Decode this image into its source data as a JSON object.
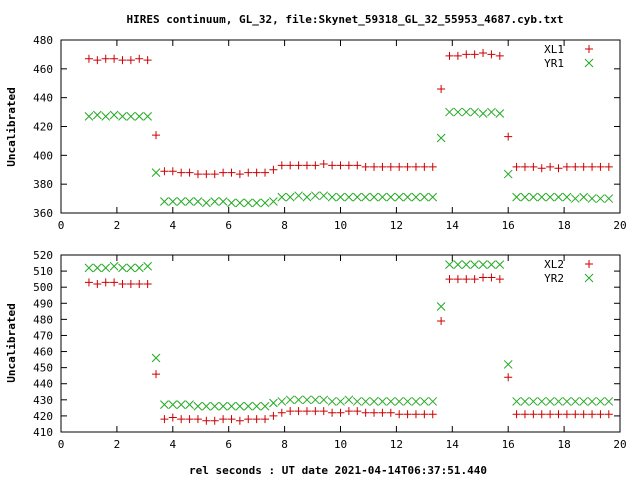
{
  "title": "HIRES continuum, GL_32, file:Skynet_59318_GL_32_55953_4687.cyb.txt",
  "xlabel": "rel seconds : UT date 2021-04-14T06:37:51.440",
  "colors": {
    "red": "#cc0000",
    "green": "#22aa22"
  },
  "chart_data": [
    {
      "type": "scatter",
      "ylabel": "Uncalibrated",
      "xlim": [
        0,
        20
      ],
      "ylim": [
        360,
        480
      ],
      "xticks": [
        0,
        2,
        4,
        6,
        8,
        10,
        12,
        14,
        16,
        18,
        20
      ],
      "yticks": [
        360,
        380,
        400,
        420,
        440,
        460,
        480
      ],
      "legend_position": "top-right",
      "series": [
        {
          "name": "XL1",
          "marker": "plus",
          "color": "#cc0000",
          "points": [
            [
              1.0,
              467
            ],
            [
              1.3,
              466
            ],
            [
              1.6,
              467
            ],
            [
              1.9,
              467
            ],
            [
              2.2,
              466
            ],
            [
              2.5,
              466
            ],
            [
              2.8,
              467
            ],
            [
              3.1,
              466
            ],
            [
              3.4,
              414
            ],
            [
              3.7,
              389
            ],
            [
              4.0,
              389
            ],
            [
              4.3,
              388
            ],
            [
              4.6,
              388
            ],
            [
              4.9,
              387
            ],
            [
              5.2,
              387
            ],
            [
              5.5,
              387
            ],
            [
              5.8,
              388
            ],
            [
              6.1,
              388
            ],
            [
              6.4,
              387
            ],
            [
              6.7,
              388
            ],
            [
              7.0,
              388
            ],
            [
              7.3,
              388
            ],
            [
              7.6,
              390
            ],
            [
              7.9,
              393
            ],
            [
              8.2,
              393
            ],
            [
              8.5,
              393
            ],
            [
              8.8,
              393
            ],
            [
              9.1,
              393
            ],
            [
              9.4,
              394
            ],
            [
              9.7,
              393
            ],
            [
              10.0,
              393
            ],
            [
              10.3,
              393
            ],
            [
              10.6,
              393
            ],
            [
              10.9,
              392
            ],
            [
              11.2,
              392
            ],
            [
              11.5,
              392
            ],
            [
              11.8,
              392
            ],
            [
              12.1,
              392
            ],
            [
              12.4,
              392
            ],
            [
              12.7,
              392
            ],
            [
              13.0,
              392
            ],
            [
              13.3,
              392
            ],
            [
              13.6,
              446
            ],
            [
              13.9,
              469
            ],
            [
              14.2,
              469
            ],
            [
              14.5,
              470
            ],
            [
              14.8,
              470
            ],
            [
              15.1,
              471
            ],
            [
              15.4,
              470
            ],
            [
              15.7,
              469
            ],
            [
              16.0,
              413
            ],
            [
              16.3,
              392
            ],
            [
              16.6,
              392
            ],
            [
              16.9,
              392
            ],
            [
              17.2,
              391
            ],
            [
              17.5,
              392
            ],
            [
              17.8,
              391
            ],
            [
              18.1,
              392
            ],
            [
              18.4,
              392
            ],
            [
              18.7,
              392
            ],
            [
              19.0,
              392
            ],
            [
              19.3,
              392
            ],
            [
              19.6,
              392
            ]
          ]
        },
        {
          "name": "YR1",
          "marker": "cross",
          "color": "#22aa22",
          "points": [
            [
              1.0,
              427
            ],
            [
              1.3,
              428
            ],
            [
              1.6,
              427
            ],
            [
              1.9,
              428
            ],
            [
              2.2,
              427
            ],
            [
              2.5,
              427
            ],
            [
              2.8,
              427
            ],
            [
              3.1,
              427
            ],
            [
              3.4,
              388
            ],
            [
              3.7,
              368
            ],
            [
              4.0,
              368
            ],
            [
              4.3,
              368
            ],
            [
              4.6,
              368
            ],
            [
              4.9,
              368
            ],
            [
              5.2,
              367
            ],
            [
              5.5,
              368
            ],
            [
              5.8,
              368
            ],
            [
              6.1,
              367
            ],
            [
              6.4,
              367
            ],
            [
              6.7,
              367
            ],
            [
              7.0,
              367
            ],
            [
              7.3,
              367
            ],
            [
              7.6,
              368
            ],
            [
              7.9,
              371
            ],
            [
              8.2,
              371
            ],
            [
              8.5,
              372
            ],
            [
              8.8,
              371
            ],
            [
              9.1,
              372
            ],
            [
              9.4,
              372
            ],
            [
              9.7,
              371
            ],
            [
              10.0,
              371
            ],
            [
              10.3,
              371
            ],
            [
              10.6,
              371
            ],
            [
              10.9,
              371
            ],
            [
              11.2,
              371
            ],
            [
              11.5,
              371
            ],
            [
              11.8,
              371
            ],
            [
              12.1,
              371
            ],
            [
              12.4,
              371
            ],
            [
              12.7,
              371
            ],
            [
              13.0,
              371
            ],
            [
              13.3,
              371
            ],
            [
              13.6,
              412
            ],
            [
              13.9,
              430
            ],
            [
              14.2,
              430
            ],
            [
              14.5,
              430
            ],
            [
              14.8,
              430
            ],
            [
              15.1,
              429
            ],
            [
              15.4,
              430
            ],
            [
              15.7,
              429
            ],
            [
              16.0,
              387
            ],
            [
              16.3,
              371
            ],
            [
              16.6,
              371
            ],
            [
              16.9,
              371
            ],
            [
              17.2,
              371
            ],
            [
              17.5,
              371
            ],
            [
              17.8,
              371
            ],
            [
              18.1,
              371
            ],
            [
              18.4,
              370
            ],
            [
              18.7,
              371
            ],
            [
              19.0,
              370
            ],
            [
              19.3,
              370
            ],
            [
              19.6,
              370
            ]
          ]
        }
      ]
    },
    {
      "type": "scatter",
      "ylabel": "Uncalibrated",
      "xlim": [
        0,
        20
      ],
      "ylim": [
        410,
        520
      ],
      "xticks": [
        0,
        2,
        4,
        6,
        8,
        10,
        12,
        14,
        16,
        18,
        20
      ],
      "yticks": [
        410,
        420,
        430,
        440,
        450,
        460,
        470,
        480,
        490,
        500,
        510,
        520
      ],
      "legend_position": "top-right",
      "series": [
        {
          "name": "XL2",
          "marker": "plus",
          "color": "#cc0000",
          "points": [
            [
              1.0,
              503
            ],
            [
              1.3,
              502
            ],
            [
              1.6,
              503
            ],
            [
              1.9,
              503
            ],
            [
              2.2,
              502
            ],
            [
              2.5,
              502
            ],
            [
              2.8,
              502
            ],
            [
              3.1,
              502
            ],
            [
              3.4,
              446
            ],
            [
              3.7,
              418
            ],
            [
              4.0,
              419
            ],
            [
              4.3,
              418
            ],
            [
              4.6,
              418
            ],
            [
              4.9,
              418
            ],
            [
              5.2,
              417
            ],
            [
              5.5,
              417
            ],
            [
              5.8,
              418
            ],
            [
              6.1,
              418
            ],
            [
              6.4,
              417
            ],
            [
              6.7,
              418
            ],
            [
              7.0,
              418
            ],
            [
              7.3,
              418
            ],
            [
              7.6,
              420
            ],
            [
              7.9,
              422
            ],
            [
              8.2,
              423
            ],
            [
              8.5,
              423
            ],
            [
              8.8,
              423
            ],
            [
              9.1,
              423
            ],
            [
              9.4,
              423
            ],
            [
              9.7,
              422
            ],
            [
              10.0,
              422
            ],
            [
              10.3,
              423
            ],
            [
              10.6,
              423
            ],
            [
              10.9,
              422
            ],
            [
              11.2,
              422
            ],
            [
              11.5,
              422
            ],
            [
              11.8,
              422
            ],
            [
              12.1,
              421
            ],
            [
              12.4,
              421
            ],
            [
              12.7,
              421
            ],
            [
              13.0,
              421
            ],
            [
              13.3,
              421
            ],
            [
              13.6,
              479
            ],
            [
              13.9,
              505
            ],
            [
              14.2,
              505
            ],
            [
              14.5,
              505
            ],
            [
              14.8,
              505
            ],
            [
              15.1,
              506
            ],
            [
              15.4,
              506
            ],
            [
              15.7,
              505
            ],
            [
              16.0,
              444
            ],
            [
              16.3,
              421
            ],
            [
              16.6,
              421
            ],
            [
              16.9,
              421
            ],
            [
              17.2,
              421
            ],
            [
              17.5,
              421
            ],
            [
              17.8,
              421
            ],
            [
              18.1,
              421
            ],
            [
              18.4,
              421
            ],
            [
              18.7,
              421
            ],
            [
              19.0,
              421
            ],
            [
              19.3,
              421
            ],
            [
              19.6,
              421
            ]
          ]
        },
        {
          "name": "YR2",
          "marker": "cross",
          "color": "#22aa22",
          "points": [
            [
              1.0,
              512
            ],
            [
              1.3,
              512
            ],
            [
              1.6,
              512
            ],
            [
              1.9,
              513
            ],
            [
              2.2,
              512
            ],
            [
              2.5,
              512
            ],
            [
              2.8,
              512
            ],
            [
              3.1,
              513
            ],
            [
              3.4,
              456
            ],
            [
              3.7,
              427
            ],
            [
              4.0,
              427
            ],
            [
              4.3,
              427
            ],
            [
              4.6,
              427
            ],
            [
              4.9,
              426
            ],
            [
              5.2,
              426
            ],
            [
              5.5,
              426
            ],
            [
              5.8,
              426
            ],
            [
              6.1,
              426
            ],
            [
              6.4,
              426
            ],
            [
              6.7,
              426
            ],
            [
              7.0,
              426
            ],
            [
              7.3,
              426
            ],
            [
              7.6,
              428
            ],
            [
              7.9,
              429
            ],
            [
              8.2,
              430
            ],
            [
              8.5,
              430
            ],
            [
              8.8,
              430
            ],
            [
              9.1,
              430
            ],
            [
              9.4,
              430
            ],
            [
              9.7,
              429
            ],
            [
              10.0,
              429
            ],
            [
              10.3,
              430
            ],
            [
              10.6,
              429
            ],
            [
              10.9,
              429
            ],
            [
              11.2,
              429
            ],
            [
              11.5,
              429
            ],
            [
              11.8,
              429
            ],
            [
              12.1,
              429
            ],
            [
              12.4,
              429
            ],
            [
              12.7,
              429
            ],
            [
              13.0,
              429
            ],
            [
              13.3,
              429
            ],
            [
              13.6,
              488
            ],
            [
              13.9,
              514
            ],
            [
              14.2,
              514
            ],
            [
              14.5,
              514
            ],
            [
              14.8,
              514
            ],
            [
              15.1,
              514
            ],
            [
              15.4,
              514
            ],
            [
              15.7,
              514
            ],
            [
              16.0,
              452
            ],
            [
              16.3,
              429
            ],
            [
              16.6,
              429
            ],
            [
              16.9,
              429
            ],
            [
              17.2,
              429
            ],
            [
              17.5,
              429
            ],
            [
              17.8,
              429
            ],
            [
              18.1,
              429
            ],
            [
              18.4,
              429
            ],
            [
              18.7,
              429
            ],
            [
              19.0,
              429
            ],
            [
              19.3,
              429
            ],
            [
              19.6,
              429
            ]
          ]
        }
      ]
    }
  ]
}
